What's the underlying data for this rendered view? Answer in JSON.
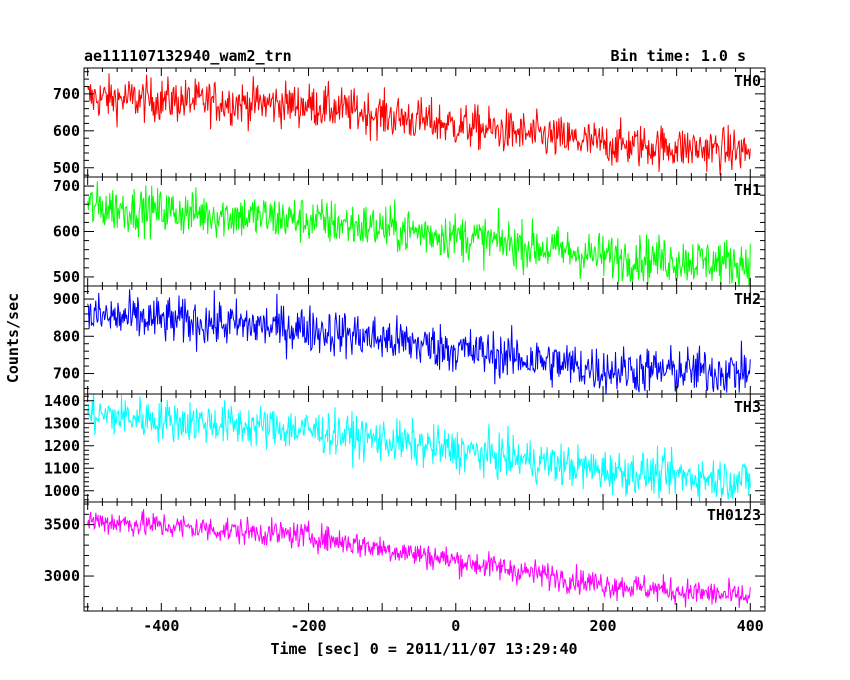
{
  "header": {
    "title": "ae111107132940_wam2_trn",
    "bin_time": "Bin time: 1.0 s"
  },
  "axes": {
    "xlabel": "Time [sec] 0 = 2011/11/07 13:29:40",
    "ylabel": "Counts/sec"
  },
  "chart_data": {
    "type": "line",
    "title": "ae111107132940_wam2_trn",
    "subtitle": "Bin time: 1.0 s",
    "xlabel": "Time [sec] 0 = 2011/11/07 13:29:40",
    "ylabel": "Counts/sec",
    "xlim": [
      -505,
      420
    ],
    "x_ticks": [
      -400,
      -200,
      0,
      200,
      400
    ],
    "x_range": [
      -500,
      400
    ],
    "bin_seconds": 1.0,
    "panels": [
      {
        "name": "TH0",
        "color": "#ff0000",
        "ylim": [
          475,
          770
        ],
        "y_ticks": [
          500,
          600,
          700
        ],
        "trend": [
          [
            -500,
            690
          ],
          [
            -200,
            670
          ],
          [
            0,
            615
          ],
          [
            200,
            565
          ],
          [
            400,
            545
          ]
        ],
        "noise": 30
      },
      {
        "name": "TH1",
        "color": "#00ff00",
        "ylim": [
          480,
          720
        ],
        "y_ticks": [
          500,
          600,
          700
        ],
        "trend": [
          [
            -500,
            655
          ],
          [
            -200,
            625
          ],
          [
            0,
            590
          ],
          [
            200,
            545
          ],
          [
            400,
            530
          ]
        ],
        "noise": 26
      },
      {
        "name": "TH2",
        "color": "#0000ff",
        "ylim": [
          645,
          935
        ],
        "y_ticks": [
          700,
          800,
          900
        ],
        "trend": [
          [
            -500,
            855
          ],
          [
            -200,
            820
          ],
          [
            0,
            765
          ],
          [
            200,
            710
          ],
          [
            400,
            705
          ]
        ],
        "noise": 32
      },
      {
        "name": "TH3",
        "color": "#00ffff",
        "ylim": [
          950,
          1430
        ],
        "y_ticks": [
          1000,
          1100,
          1200,
          1300,
          1400
        ],
        "trend": [
          [
            -500,
            1340
          ],
          [
            -200,
            1270
          ],
          [
            0,
            1180
          ],
          [
            200,
            1090
          ],
          [
            400,
            1045
          ]
        ],
        "noise": 48
      },
      {
        "name": "TH0123",
        "color": "#ff00ff",
        "ylim": [
          2660,
          3720
        ],
        "y_ticks": [
          3000,
          3500
        ],
        "trend": [
          [
            -500,
            3540
          ],
          [
            -200,
            3390
          ],
          [
            0,
            3150
          ],
          [
            200,
            2920
          ],
          [
            400,
            2790
          ]
        ],
        "noise": 65
      }
    ]
  }
}
